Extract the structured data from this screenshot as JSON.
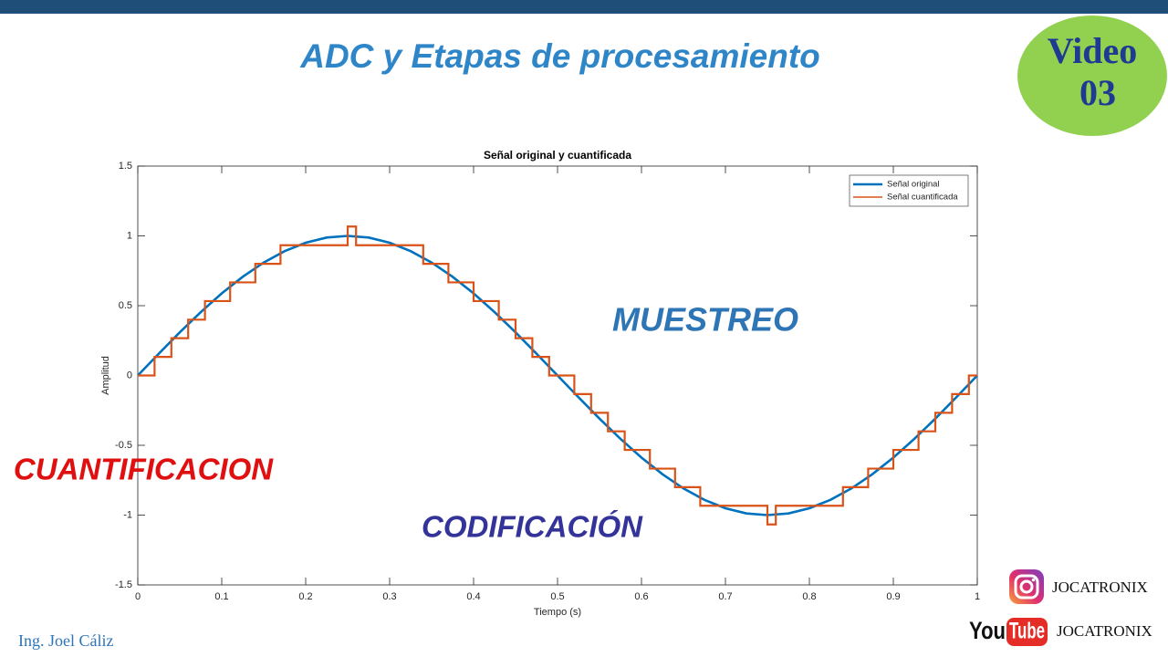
{
  "slide": {
    "title": "ADC y Etapas de procesamiento",
    "badge": [
      "Video",
      "03"
    ],
    "labels": {
      "sampling": "MUESTREO",
      "quantization": "CUANTIFICACION",
      "coding": "CODIFICACIÓN"
    },
    "author": "Ing. Joel Cáliz",
    "social": {
      "instagram": "JOCATRONIX",
      "youtube_logo": [
        "You",
        "Tube"
      ],
      "youtube": "JOCATRONIX"
    }
  },
  "chart_data": {
    "type": "line",
    "title": "Señal original y cuantificada",
    "xlabel": "Tiempo (s)",
    "ylabel": "Amplitud",
    "xlim": [
      0,
      1
    ],
    "ylim": [
      -1.5,
      1.5
    ],
    "xticks": [
      0,
      0.1,
      0.2,
      0.3,
      0.4,
      0.5,
      0.6,
      0.7,
      0.8,
      0.9,
      1
    ],
    "yticks": [
      -1.5,
      -1,
      -0.5,
      0,
      0.5,
      1,
      1.5
    ],
    "grid": false,
    "legend": "upper right",
    "series": [
      {
        "name": "Señal original",
        "color": "#0072bd",
        "drawstyle": "default",
        "x": [
          0,
          0.025,
          0.05,
          0.075,
          0.1,
          0.125,
          0.15,
          0.175,
          0.2,
          0.225,
          0.25,
          0.275,
          0.3,
          0.325,
          0.35,
          0.375,
          0.4,
          0.425,
          0.45,
          0.475,
          0.5,
          0.525,
          0.55,
          0.575,
          0.6,
          0.625,
          0.65,
          0.675,
          0.7,
          0.725,
          0.75,
          0.775,
          0.8,
          0.825,
          0.85,
          0.875,
          0.9,
          0.925,
          0.95,
          0.975,
          1
        ],
        "values": [
          0,
          0.156,
          0.309,
          0.454,
          0.588,
          0.707,
          0.809,
          0.891,
          0.951,
          0.988,
          1,
          0.988,
          0.951,
          0.891,
          0.809,
          0.707,
          0.588,
          0.454,
          0.309,
          0.156,
          0,
          -0.156,
          -0.309,
          -0.454,
          -0.588,
          -0.707,
          -0.809,
          -0.891,
          -0.951,
          -0.988,
          -1,
          -0.988,
          -0.951,
          -0.891,
          -0.809,
          -0.707,
          -0.588,
          -0.454,
          -0.309,
          -0.156,
          0
        ]
      },
      {
        "name": "Señal cuantificada",
        "color": "#d95319",
        "drawstyle": "steps-post",
        "x": [
          0,
          0.02,
          0.04,
          0.06,
          0.08,
          0.11,
          0.14,
          0.17,
          0.25,
          0.26,
          0.34,
          0.37,
          0.4,
          0.43,
          0.45,
          0.47,
          0.49,
          0.52,
          0.54,
          0.56,
          0.58,
          0.61,
          0.64,
          0.67,
          0.75,
          0.76,
          0.84,
          0.87,
          0.9,
          0.93,
          0.95,
          0.97,
          0.99,
          1
        ],
        "values": [
          0,
          0.133,
          0.267,
          0.4,
          0.533,
          0.667,
          0.8,
          0.933,
          1.067,
          0.933,
          0.8,
          0.667,
          0.533,
          0.4,
          0.267,
          0.133,
          0,
          -0.133,
          -0.267,
          -0.4,
          -0.533,
          -0.667,
          -0.8,
          -0.933,
          -1.067,
          -0.933,
          -0.8,
          -0.667,
          -0.533,
          -0.4,
          -0.267,
          -0.133,
          0,
          0
        ]
      }
    ]
  }
}
